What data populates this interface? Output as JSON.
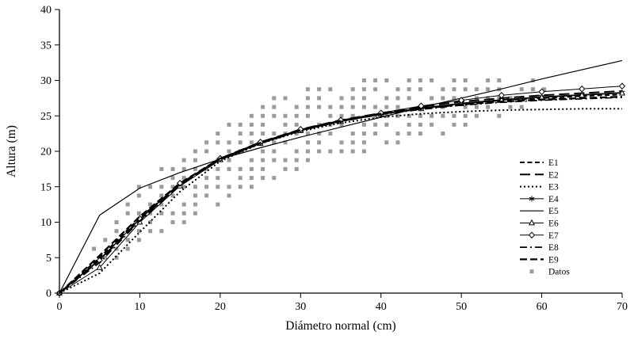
{
  "chart_data": {
    "type": "line",
    "title": "",
    "xlabel": "Diámetro normal (cm)",
    "ylabel": "Altura (m)",
    "xlim": [
      0,
      70
    ],
    "ylim": [
      0,
      40
    ],
    "x_ticks": [
      0,
      10,
      20,
      30,
      40,
      50,
      60,
      70
    ],
    "y_ticks": [
      0,
      5,
      10,
      15,
      20,
      25,
      30,
      35,
      40
    ],
    "grid": false,
    "legend_position": "inside-right",
    "colors": {
      "lines": "#000000",
      "scatter": "#9b9b9b"
    },
    "x": [
      0,
      5,
      10,
      15,
      20,
      25,
      30,
      35,
      40,
      45,
      50,
      55,
      60,
      65,
      70
    ],
    "series": [
      {
        "name": "E1",
        "dash": [
          6,
          3.5
        ],
        "width": 2,
        "marker": "none",
        "values": [
          0,
          5.0,
          10.6,
          15.4,
          18.9,
          21.2,
          23.0,
          24.3,
          25.3,
          26.1,
          26.7,
          27.2,
          27.5,
          27.8,
          28.0
        ]
      },
      {
        "name": "E2",
        "dash": [
          13,
          6
        ],
        "width": 2,
        "marker": "none",
        "values": [
          0,
          4.6,
          10.3,
          15.3,
          19.0,
          21.3,
          23.1,
          24.4,
          25.4,
          26.3,
          27.0,
          27.5,
          27.9,
          28.2,
          28.5
        ]
      },
      {
        "name": "E3",
        "dash": [
          2,
          3
        ],
        "width": 2,
        "marker": "none",
        "values": [
          0,
          2.8,
          8.6,
          14.3,
          18.6,
          21.1,
          22.8,
          24.0,
          24.8,
          25.3,
          25.6,
          25.8,
          25.9,
          26.0,
          26.0
        ]
      },
      {
        "name": "E4",
        "dash": null,
        "width": 1,
        "marker": "star",
        "values": [
          0,
          4.8,
          10.4,
          15.4,
          18.9,
          21.2,
          23.0,
          24.3,
          25.3,
          26.1,
          26.8,
          27.3,
          27.7,
          28.0,
          28.3
        ]
      },
      {
        "name": "E5",
        "dash": null,
        "width": 1.2,
        "marker": "none",
        "values": [
          0,
          11.0,
          14.8,
          17.0,
          18.9,
          20.5,
          22.0,
          23.4,
          24.8,
          26.2,
          27.5,
          28.8,
          30.2,
          31.5,
          32.8
        ]
      },
      {
        "name": "E6",
        "dash": null,
        "width": 1,
        "marker": "triangle",
        "values": [
          0,
          3.6,
          10.0,
          15.1,
          18.8,
          21.1,
          22.9,
          24.2,
          25.2,
          26.0,
          26.7,
          27.2,
          27.6,
          27.9,
          28.2
        ]
      },
      {
        "name": "E7",
        "dash": null,
        "width": 1,
        "marker": "diamond",
        "values": [
          0,
          4.6,
          10.5,
          15.5,
          19.0,
          21.3,
          23.1,
          24.4,
          25.4,
          26.4,
          27.2,
          27.9,
          28.4,
          28.8,
          29.2
        ]
      },
      {
        "name": "E8",
        "dash": [
          9,
          4,
          2,
          4
        ],
        "width": 1.7,
        "marker": "none",
        "values": [
          0,
          4.3,
          10.2,
          15.2,
          18.8,
          21.1,
          22.9,
          24.2,
          25.2,
          25.9,
          26.5,
          26.9,
          27.2,
          27.4,
          27.6
        ]
      },
      {
        "name": "E9",
        "dash": [
          9,
          4
        ],
        "width": 2.3,
        "marker": "none",
        "values": [
          0,
          5.3,
          10.8,
          15.5,
          19.0,
          21.2,
          23.0,
          24.3,
          25.3,
          26.0,
          26.6,
          27.0,
          27.3,
          27.5,
          27.7
        ]
      }
    ],
    "scatter": {
      "name": "Datos",
      "marker": "square",
      "color": "#9b9b9b",
      "y_step": 1.25,
      "columns": [
        [
          4.3,
          4.5,
          6.8
        ],
        [
          5.7,
          4.5,
          8
        ],
        [
          7.1,
          5,
          11
        ],
        [
          8.5,
          5.5,
          13
        ],
        [
          9.9,
          6.5,
          15
        ],
        [
          11.3,
          7.5,
          16
        ],
        [
          12.7,
          8.5,
          17.5
        ],
        [
          14.1,
          9.5,
          19
        ],
        [
          15.5,
          10,
          20
        ],
        [
          16.9,
          11,
          21
        ],
        [
          18.3,
          12,
          22
        ],
        [
          19.7,
          12.5,
          23
        ],
        [
          21.1,
          13.5,
          24
        ],
        [
          22.5,
          14,
          25.5
        ],
        [
          23.9,
          14.5,
          26
        ],
        [
          25.3,
          15,
          27
        ],
        [
          26.7,
          16,
          27.5
        ],
        [
          28.1,
          16.5,
          28
        ],
        [
          29.5,
          17,
          28.5
        ],
        [
          30.9,
          18,
          29
        ],
        [
          32.3,
          18.5,
          29
        ],
        [
          33.7,
          19,
          29.5
        ],
        [
          35.1,
          19.5,
          29.5
        ],
        [
          36.5,
          20,
          30
        ],
        [
          37.9,
          20,
          30
        ],
        [
          39.3,
          20.5,
          30
        ],
        [
          40.7,
          21,
          30
        ],
        [
          42.1,
          21,
          30
        ],
        [
          43.5,
          21.5,
          30
        ],
        [
          44.9,
          22,
          30
        ],
        [
          46.3,
          22,
          30.5
        ],
        [
          47.7,
          22.5,
          30.5
        ],
        [
          49.1,
          23,
          31
        ],
        [
          50.5,
          23.5,
          30.5
        ],
        [
          51.9,
          24,
          30.5
        ],
        [
          53.3,
          24.5,
          30
        ],
        [
          54.7,
          25,
          31
        ],
        [
          56.1,
          25.5,
          29.5
        ],
        [
          57.5,
          26,
          29
        ],
        [
          58.9,
          26.5,
          30
        ],
        [
          60.3,
          27,
          29.5
        ],
        [
          61.7,
          27.5,
          29.5
        ]
      ]
    }
  }
}
